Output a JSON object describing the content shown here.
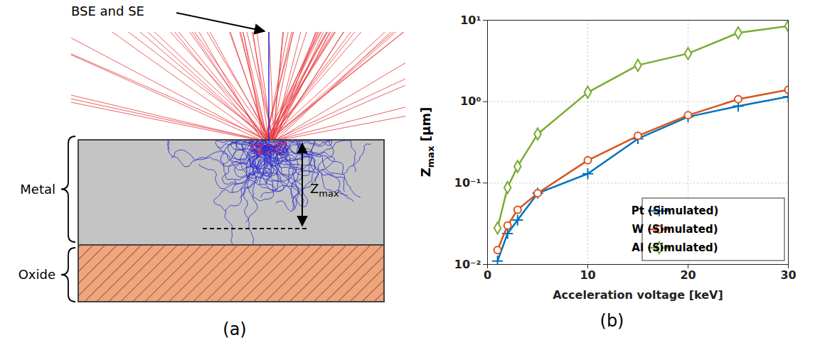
{
  "diagram": {
    "panel_label": "(a)",
    "arrow_label": "BSE and SE",
    "layers": [
      {
        "label": "Metal"
      },
      {
        "label": "Oxide"
      }
    ],
    "depth_label": {
      "text": "Z",
      "sub": "max"
    }
  },
  "chart_data": {
    "type": "line",
    "caption": "(b)",
    "xlabel": "Acceleration voltage [keV]",
    "ylabel": {
      "text": "Z",
      "sub": "max",
      "after": " [μm]"
    },
    "x": [
      1,
      2,
      3,
      5,
      10,
      15,
      20,
      25,
      30
    ],
    "series": [
      {
        "name": "Pt (Simulated)",
        "color": "#0072bd",
        "marker": "plus",
        "values": [
          0.011,
          0.024,
          0.035,
          0.075,
          0.13,
          0.35,
          0.65,
          0.88,
          1.15
        ]
      },
      {
        "name": "W (Simulated)",
        "color": "#d95319",
        "marker": "circle",
        "values": [
          0.015,
          0.03,
          0.047,
          0.075,
          0.19,
          0.38,
          0.68,
          1.07,
          1.4
        ]
      },
      {
        "name": "Al (Simulated)",
        "color": "#77ac30",
        "marker": "diamond",
        "values": [
          0.028,
          0.088,
          0.16,
          0.4,
          1.3,
          2.8,
          3.9,
          7.0,
          8.5
        ]
      }
    ],
    "xlim": [
      0,
      30
    ],
    "xticks": [
      0,
      10,
      20,
      30
    ],
    "ylim": [
      0.01,
      10
    ],
    "yticks": [
      {
        "value": 0.01,
        "label": "10⁻²"
      },
      {
        "value": 0.1,
        "label": "10⁻¹"
      },
      {
        "value": 1,
        "label": "10⁰"
      },
      {
        "value": 10,
        "label": "10¹"
      }
    ],
    "log": "y",
    "grid": true,
    "legend": "bottom-right"
  }
}
